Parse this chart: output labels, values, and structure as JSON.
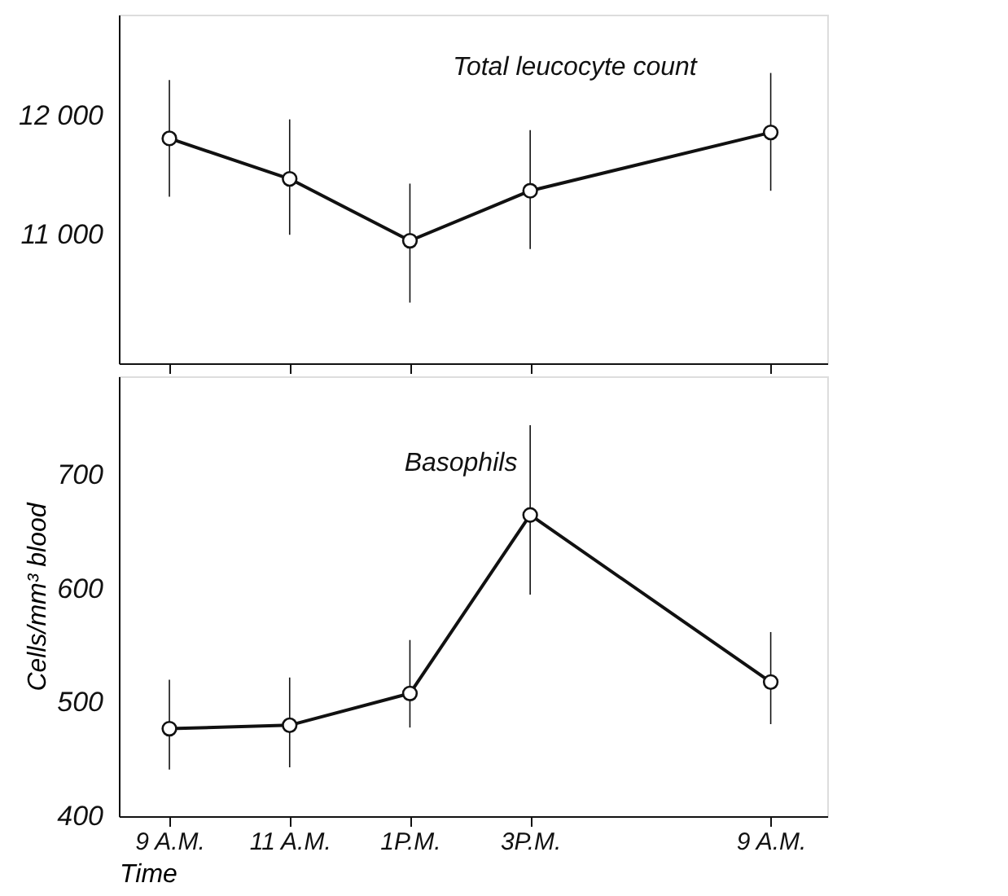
{
  "chart_data": [
    {
      "type": "line",
      "title": "Total leucocyte count",
      "categories": [
        null,
        null,
        null,
        null,
        null,
        null
      ],
      "ylim": [
        9920,
        12850
      ],
      "yticks": [
        {
          "value": 11000,
          "label": "11 000"
        },
        {
          "value": 12000,
          "label": "12 000"
        }
      ],
      "series": [
        {
          "color": "#111111",
          "values": [
            11810,
            11470,
            10950,
            11370,
            null,
            11860
          ],
          "errors": [
            [
              11320,
              12300
            ],
            [
              11000,
              11970
            ],
            [
              10430,
              11430
            ],
            [
              10880,
              11880
            ],
            null,
            [
              11370,
              12360
            ]
          ]
        }
      ],
      "marker": "circle",
      "line_style": "solid",
      "grid": false,
      "tick_labels": "y"
    },
    {
      "type": "line",
      "title": "Basophils",
      "xlabel": "Time",
      "ylabel": "Cells/mm³ blood",
      "categories": [
        "9 A.M.",
        "11 A.M.",
        "1P.M.",
        "3P.M.",
        null,
        "9 A.M."
      ],
      "ylim": [
        400,
        787
      ],
      "yticks": [
        400,
        500,
        600,
        700
      ],
      "series": [
        {
          "color": "#111111",
          "values": [
            477,
            480,
            508,
            665,
            null,
            518
          ],
          "errors": [
            [
              441,
              520
            ],
            [
              443,
              522
            ],
            [
              478,
              555
            ],
            [
              595,
              744
            ],
            null,
            [
              481,
              562
            ]
          ]
        }
      ],
      "marker": "circle",
      "line_style": "solid",
      "grid": false
    }
  ]
}
